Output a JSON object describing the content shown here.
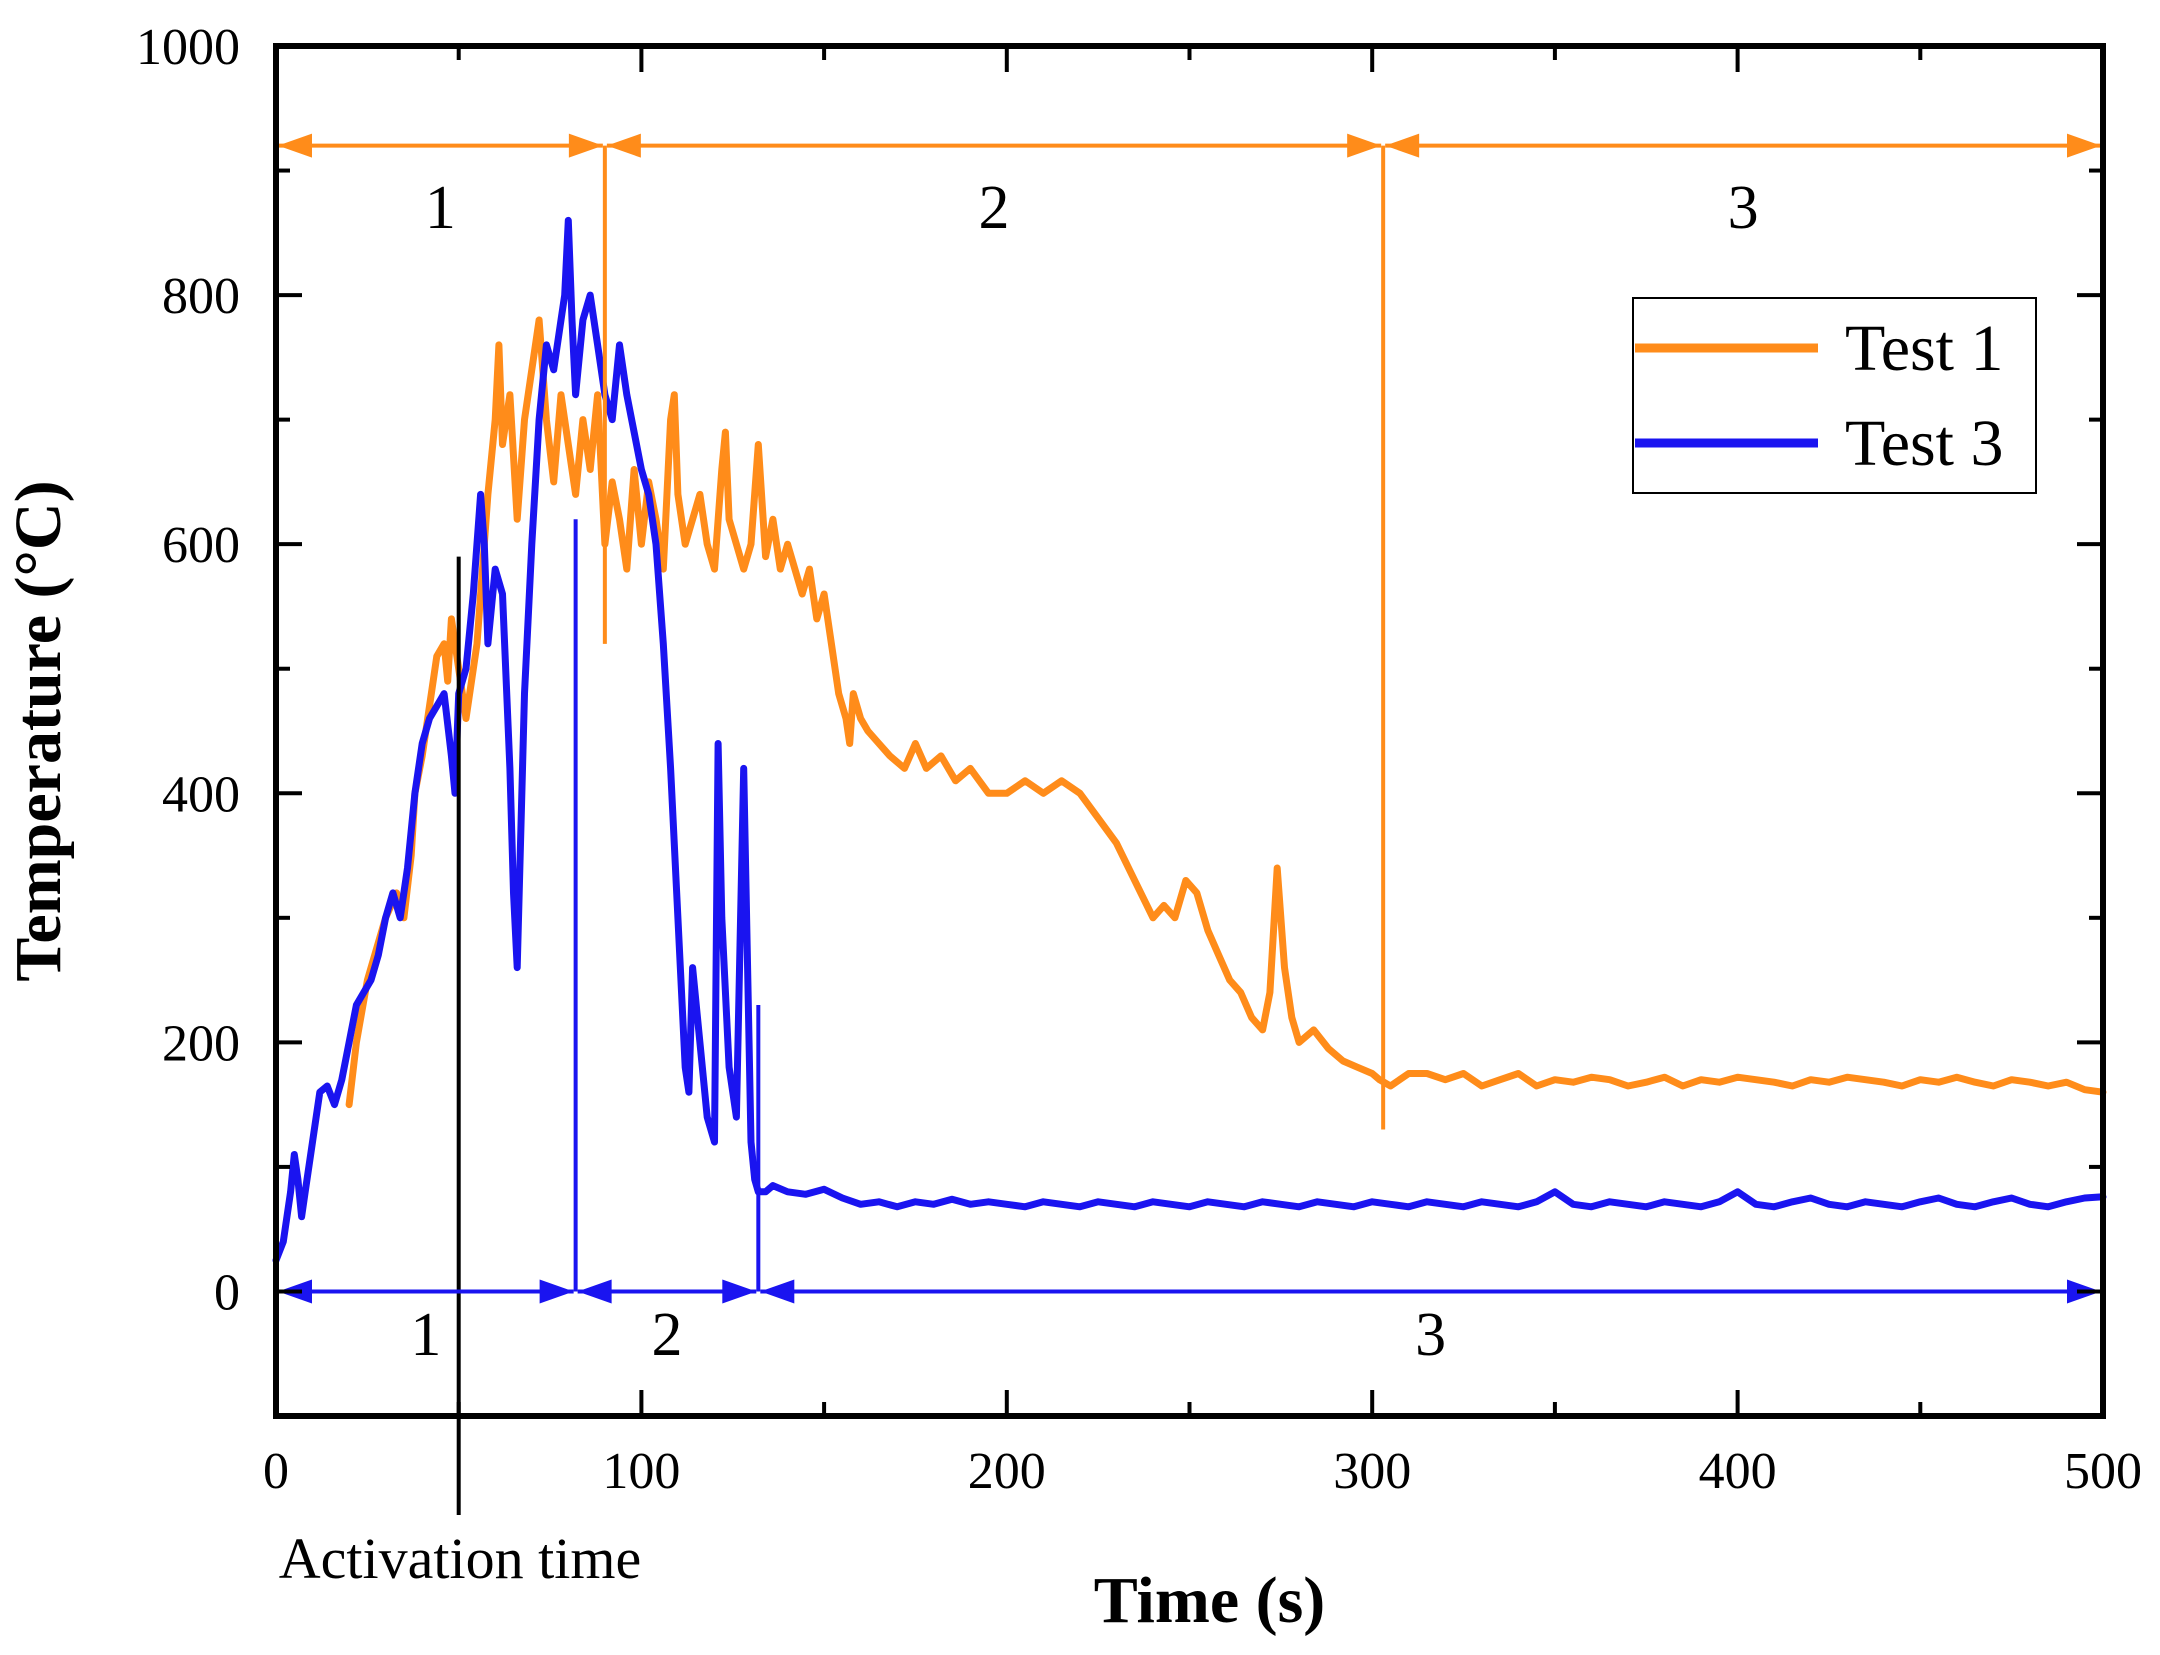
{
  "chart_data": {
    "type": "line",
    "xlabel": "Time (s)",
    "ylabel": "Temperature (°C)",
    "xlim": [
      0,
      500
    ],
    "ylim": [
      -100,
      1000
    ],
    "xticks": [
      0,
      100,
      200,
      300,
      400,
      500
    ],
    "yticks": [
      0,
      200,
      400,
      600,
      800,
      1000
    ],
    "grid": false,
    "legend_position": "top-right",
    "colors": {
      "test1": "#ff8c1a",
      "test3": "#1a14f0",
      "activation": "#000000"
    },
    "series": [
      {
        "name": "Test 1",
        "color": "#ff8c1a",
        "x": [
          20,
          22,
          25,
          28,
          30,
          33,
          35,
          37,
          38,
          40,
          42,
          44,
          46,
          47,
          48,
          50,
          52,
          55,
          57,
          58,
          60,
          61,
          62,
          64,
          66,
          68,
          70,
          72,
          74,
          76,
          78,
          80,
          82,
          84,
          86,
          88,
          90,
          92,
          94,
          96,
          98,
          100,
          102,
          104,
          106,
          108,
          109,
          110,
          112,
          114,
          116,
          118,
          120,
          122,
          123,
          124,
          126,
          128,
          130,
          132,
          134,
          136,
          138,
          140,
          142,
          144,
          146,
          148,
          150,
          152,
          154,
          156,
          157,
          158,
          160,
          162,
          165,
          168,
          172,
          175,
          178,
          182,
          186,
          190,
          195,
          200,
          205,
          210,
          215,
          220,
          225,
          230,
          235,
          240,
          243,
          246,
          249,
          252,
          255,
          258,
          261,
          264,
          267,
          270,
          272,
          274,
          276,
          278,
          280,
          284,
          288,
          292,
          296,
          300,
          302,
          305,
          310,
          315,
          320,
          325,
          330,
          335,
          340,
          345,
          350,
          355,
          360,
          365,
          370,
          375,
          380,
          385,
          390,
          395,
          400,
          405,
          410,
          415,
          420,
          425,
          430,
          435,
          440,
          445,
          450,
          455,
          460,
          465,
          470,
          475,
          480,
          485,
          490,
          495,
          500
        ],
        "y": [
          150,
          200,
          250,
          280,
          300,
          320,
          300,
          350,
          400,
          430,
          470,
          510,
          520,
          490,
          540,
          500,
          460,
          520,
          600,
          640,
          700,
          760,
          680,
          720,
          620,
          700,
          740,
          780,
          700,
          650,
          720,
          680,
          640,
          700,
          660,
          720,
          600,
          650,
          620,
          580,
          660,
          600,
          650,
          620,
          580,
          700,
          720,
          640,
          600,
          620,
          640,
          600,
          580,
          660,
          690,
          620,
          600,
          580,
          600,
          680,
          590,
          620,
          580,
          600,
          580,
          560,
          580,
          540,
          560,
          520,
          480,
          460,
          440,
          480,
          460,
          450,
          440,
          430,
          420,
          440,
          420,
          430,
          410,
          420,
          400,
          400,
          410,
          400,
          410,
          400,
          380,
          360,
          330,
          300,
          310,
          300,
          330,
          320,
          290,
          270,
          250,
          240,
          220,
          210,
          240,
          340,
          260,
          220,
          200,
          210,
          195,
          185,
          180,
          175,
          170,
          165,
          175,
          175,
          170,
          175,
          165,
          170,
          175,
          165,
          170,
          168,
          172,
          170,
          165,
          168,
          172,
          165,
          170,
          168,
          172,
          170,
          168,
          165,
          170,
          168,
          172,
          170,
          168,
          165,
          170,
          168,
          172,
          168,
          165,
          170,
          168,
          165,
          168,
          162,
          160
        ]
      },
      {
        "name": "Test 3",
        "color": "#1a14f0",
        "x": [
          0,
          2,
          4,
          5,
          6,
          7,
          8,
          10,
          12,
          14,
          16,
          18,
          20,
          22,
          24,
          26,
          28,
          30,
          32,
          34,
          36,
          38,
          40,
          42,
          44,
          46,
          48,
          49,
          50,
          52,
          54,
          56,
          57,
          58,
          60,
          62,
          64,
          65,
          66,
          68,
          70,
          72,
          74,
          76,
          78,
          79,
          80,
          81,
          82,
          84,
          86,
          88,
          90,
          92,
          94,
          96,
          98,
          100,
          102,
          104,
          106,
          108,
          110,
          112,
          113,
          114,
          116,
          118,
          120,
          121,
          122,
          124,
          126,
          128,
          130,
          131,
          132,
          134,
          136,
          140,
          145,
          150,
          155,
          160,
          165,
          170,
          175,
          180,
          185,
          190,
          195,
          200,
          205,
          210,
          215,
          220,
          225,
          230,
          235,
          240,
          245,
          250,
          255,
          260,
          265,
          270,
          275,
          280,
          285,
          290,
          295,
          300,
          305,
          310,
          315,
          320,
          325,
          330,
          335,
          340,
          345,
          350,
          355,
          360,
          365,
          370,
          375,
          380,
          385,
          390,
          395,
          400,
          405,
          410,
          415,
          420,
          425,
          430,
          435,
          440,
          445,
          450,
          455,
          460,
          465,
          470,
          475,
          480,
          485,
          490,
          495,
          500
        ],
        "y": [
          25,
          40,
          80,
          110,
          90,
          60,
          80,
          120,
          160,
          165,
          150,
          170,
          200,
          230,
          240,
          250,
          270,
          300,
          320,
          300,
          340,
          400,
          440,
          460,
          470,
          480,
          430,
          400,
          480,
          500,
          560,
          640,
          600,
          520,
          580,
          560,
          420,
          320,
          260,
          480,
          600,
          700,
          760,
          740,
          780,
          800,
          860,
          780,
          720,
          780,
          800,
          760,
          720,
          700,
          760,
          720,
          690,
          660,
          640,
          600,
          520,
          420,
          300,
          180,
          160,
          260,
          200,
          140,
          120,
          440,
          300,
          180,
          140,
          420,
          120,
          90,
          80,
          80,
          85,
          80,
          78,
          82,
          75,
          70,
          72,
          68,
          72,
          70,
          74,
          70,
          72,
          70,
          68,
          72,
          70,
          68,
          72,
          70,
          68,
          72,
          70,
          68,
          72,
          70,
          68,
          72,
          70,
          68,
          72,
          70,
          68,
          72,
          70,
          68,
          72,
          70,
          68,
          72,
          70,
          68,
          72,
          80,
          70,
          68,
          72,
          70,
          68,
          72,
          70,
          68,
          72,
          80,
          70,
          68,
          72,
          75,
          70,
          68,
          72,
          70,
          68,
          72,
          75,
          70,
          68,
          72,
          75,
          70,
          68,
          72,
          75,
          76
        ]
      }
    ],
    "activation_time": {
      "x": 50,
      "label": "Activation time"
    },
    "test1_phases": {
      "y": 920,
      "boundaries": [
        0,
        90,
        303,
        500
      ],
      "labels": [
        "1",
        "2",
        "3"
      ],
      "label_y": 870
    },
    "test3_phases": {
      "y": 0,
      "boundaries": [
        0,
        82,
        132,
        500
      ],
      "labels": [
        "1",
        "2",
        "3"
      ],
      "label_y": -35
    },
    "phase_markers": [
      {
        "x": 90,
        "y_from": 520,
        "y_to": 920,
        "color": "#ff8c1a"
      },
      {
        "x": 303,
        "y_from": 130,
        "y_to": 920,
        "color": "#ff8c1a"
      },
      {
        "x": 82,
        "y_from": 0,
        "y_to": 620,
        "color": "#1a14f0"
      },
      {
        "x": 132,
        "y_from": 0,
        "y_to": 230,
        "color": "#1a14f0"
      }
    ]
  }
}
